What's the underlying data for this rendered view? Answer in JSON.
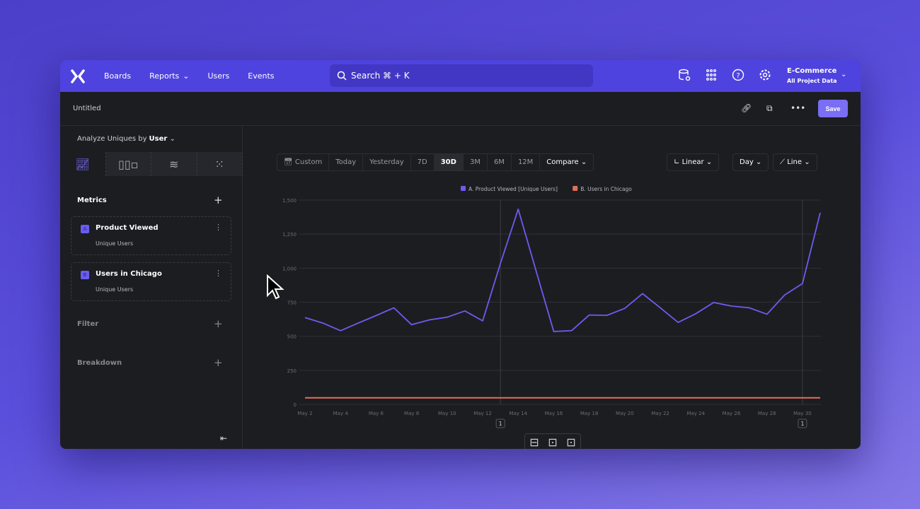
{
  "nav": {
    "items": [
      "Boards",
      "Reports",
      "Users",
      "Events"
    ],
    "search": "Search  ⌘ + K",
    "project": "E-Commerce",
    "project_sub": "All Project Data"
  },
  "report": {
    "title": "Untitled",
    "save": "Save",
    "analyze_label": "Analyze Uniques by",
    "analyze_value": "User"
  },
  "sidebar": {
    "metrics_label": "Metrics",
    "metrics": [
      {
        "letter": "A",
        "name": "Product Viewed",
        "sub": "Unique Users"
      },
      {
        "letter": "B",
        "name": "Users in Chicago",
        "sub": "Unique Users"
      }
    ],
    "filter_label": "Filter",
    "breakdown_label": "Breakdown"
  },
  "toolbar": {
    "custom": "Custom",
    "ranges": [
      "Today",
      "Yesterday",
      "7D",
      "30D",
      "3M",
      "6M",
      "12M"
    ],
    "selected": "30D",
    "compare": "Compare",
    "scale": "Linear",
    "interval": "Day",
    "chart_type": "Line"
  },
  "colors": {
    "accent": "#4f43df",
    "series_a": "#6b5cf0",
    "series_b": "#e0705a"
  },
  "chart_data": {
    "type": "line",
    "x": [
      "May 1",
      "May 2",
      "May 3",
      "May 4",
      "May 5",
      "May 6",
      "May 7",
      "May 8",
      "May 9",
      "May 10",
      "May 11",
      "May 12",
      "May 13",
      "May 14",
      "May 15",
      "May 16",
      "May 17",
      "May 18",
      "May 19",
      "May 20",
      "May 21",
      "May 22",
      "May 23",
      "May 24",
      "May 25",
      "May 26",
      "May 27",
      "May 28",
      "May 29",
      "May 30",
      "May 31"
    ],
    "xticks": [
      "May 2",
      "May 4",
      "May 6",
      "May 8",
      "May 10",
      "May 12",
      "May 14",
      "May 16",
      "May 18",
      "May 20",
      "May 22",
      "May 24",
      "May 26",
      "May 28",
      "May 30"
    ],
    "yticks": [
      "0",
      "250",
      "500",
      "750",
      "1,000",
      "1,250",
      "1,500"
    ],
    "ylim": [
      0,
      1500
    ],
    "series": [
      {
        "name": "A. Product Viewed [Unique Users]",
        "values": [
          null,
          637,
          597,
          541,
          597,
          652,
          709,
          585,
          620,
          640,
          686,
          613,
          1035,
          1433,
          983,
          535,
          541,
          656,
          654,
          705,
          813,
          709,
          602,
          666,
          748,
          722,
          709,
          662,
          803,
          887,
          1407
        ]
      },
      {
        "name": "B. Users in Chicago",
        "values": [
          null,
          48,
          48,
          48,
          48,
          48,
          48,
          48,
          48,
          48,
          48,
          48,
          48,
          48,
          48,
          48,
          48,
          48,
          48,
          48,
          48,
          48,
          48,
          48,
          48,
          48,
          48,
          48,
          48,
          48,
          48
        ]
      }
    ],
    "annotations": [
      {
        "x": "May 13",
        "label": "1"
      },
      {
        "x": "May 30",
        "label": "1"
      }
    ],
    "legend": "top",
    "grid": true
  }
}
